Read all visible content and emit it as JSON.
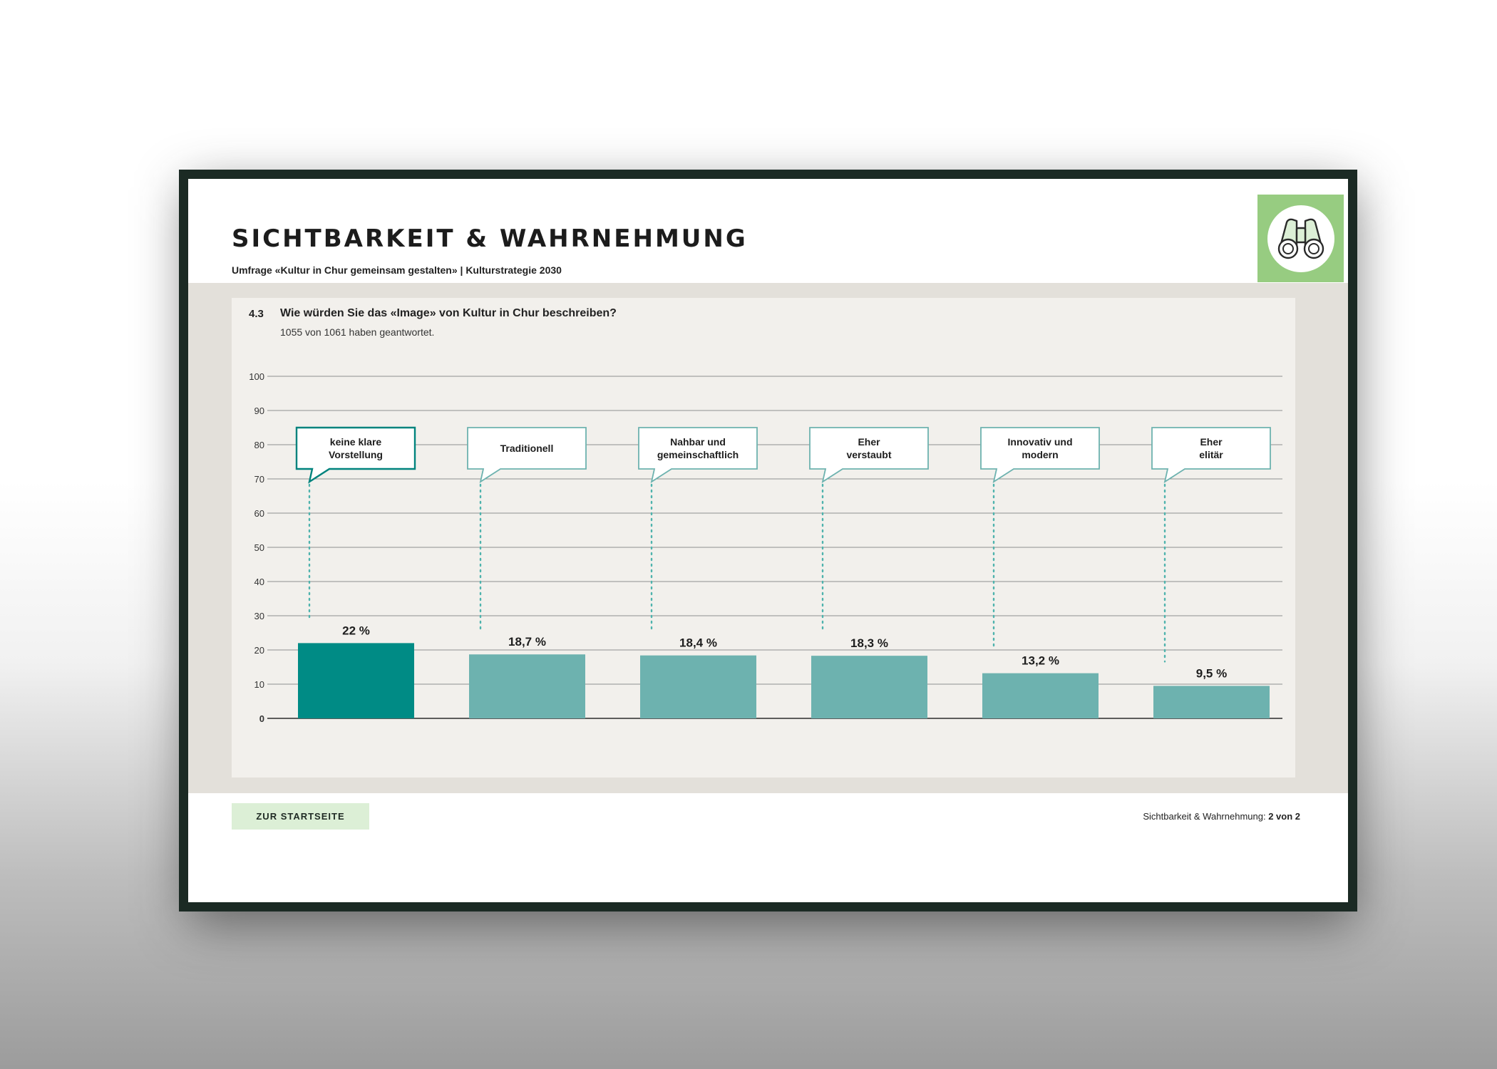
{
  "header": {
    "title": "SICHTBARKEIT & WAHRNEHMUNG",
    "subtitle": "Umfrage «Kultur in Chur gemeinsam gestalten» | Kulturstrategie 2030",
    "badge_icon": "binoculars-icon"
  },
  "question": {
    "number": "4.3",
    "text": "Wie würden Sie das «Image» von Kultur in Chur beschreiben?",
    "responses": "1055 von 1061 haben geantwortet."
  },
  "chart_data": {
    "type": "bar",
    "title": "",
    "xlabel": "",
    "ylabel": "",
    "ylim": [
      0,
      100
    ],
    "yticks": [
      0,
      10,
      20,
      30,
      40,
      50,
      60,
      70,
      80,
      90,
      100
    ],
    "grid": true,
    "categories": [
      "keine klare Vorstellung",
      "Traditionell",
      "Nahbar und gemeinschaftlich",
      "Eher verstaubt",
      "Innovativ und modern",
      "Eher elitär"
    ],
    "category_labels": [
      [
        "keine klare",
        "Vorstellung"
      ],
      [
        "Traditionell"
      ],
      [
        "Nahbar und",
        "gemeinschaftlich"
      ],
      [
        "Eher",
        "verstaubt"
      ],
      [
        "Innovativ und",
        "modern"
      ],
      [
        "Eher",
        "elitär"
      ]
    ],
    "values": [
      22,
      18.7,
      18.4,
      18.3,
      13.2,
      9.5
    ],
    "value_labels": [
      "22 %",
      "18,7 %",
      "18,4 %",
      "18,3 %",
      "13,2 %",
      "9,5 %"
    ],
    "highlight_index": 0,
    "colors": {
      "highlight": "#008b85",
      "bar": "#6db2af",
      "callout_border": "#6db2af",
      "callout_highlight_border": "#00837d",
      "leader": "#4fb3ad",
      "grid": "#8f8f8f"
    }
  },
  "footer": {
    "home_button": "ZUR STARTSEITE",
    "section_label": "Sichtbarkeit & Wahrnehmung:",
    "page_indicator": "2 von 2"
  }
}
